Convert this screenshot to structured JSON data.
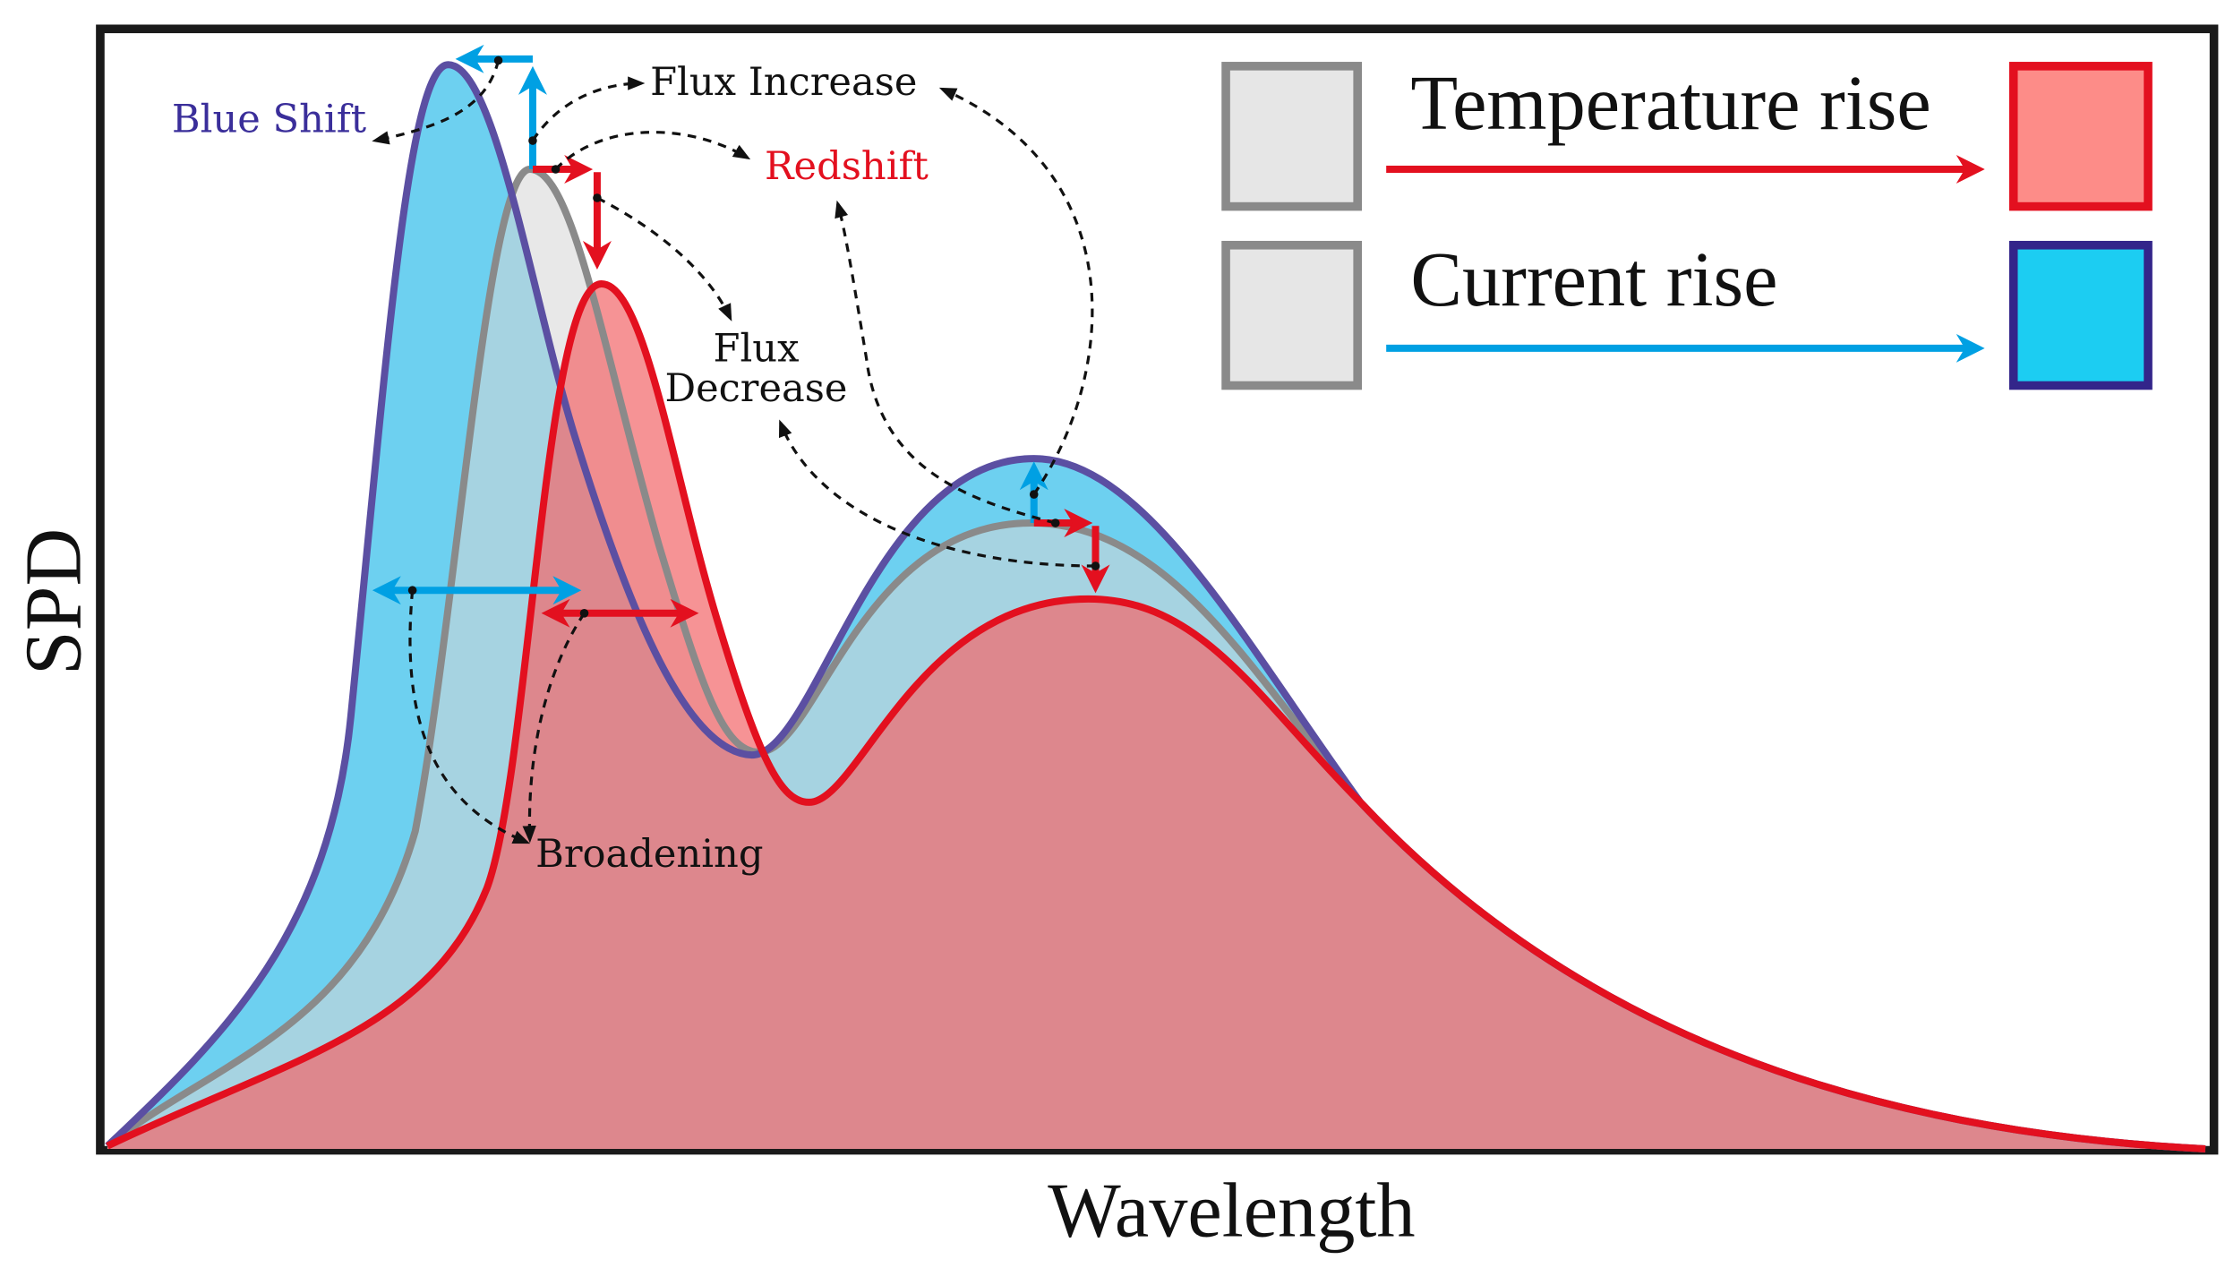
{
  "axes": {
    "y_label": "SPD",
    "x_label": "Wavelength"
  },
  "annotations": {
    "blue_shift": "Blue Shift",
    "flux_increase": "Flux Increase",
    "redshift": "Redshift",
    "flux_decrease_1": "Flux",
    "flux_decrease_2": "Decrease",
    "broadening": "Broadening"
  },
  "legend": {
    "temperature": "Temperature rise",
    "current": "Current rise"
  },
  "colors": {
    "reference_stroke": "#8a8a8a",
    "reference_fill": "#e6e6e6",
    "temperature_stroke": "#e3101f",
    "temperature_fill": "#fd8c88",
    "current_stroke": "#33258a",
    "current_fill": "#1ccdf2",
    "arrow_blue": "#00a0e3",
    "blue_text": "#3a2e9a"
  }
}
